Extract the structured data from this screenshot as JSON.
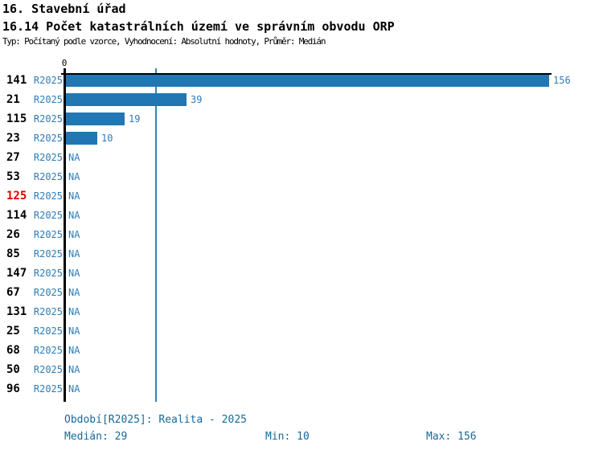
{
  "header": {
    "section_title": "16. Stavební úřad",
    "indicator_title": "16.14 Počet katastrálních území ve správním obvodu ORP",
    "meta": "Typ: Počítaný podle vzorce, Vyhodnocení: Absolutní hodnoty, Průměr: Medián"
  },
  "chart_data": {
    "type": "bar",
    "orientation": "horizontal",
    "title": "16.14 Počet katastrálních území ve správním obvodu ORP",
    "axis_zero_label": "0",
    "period_label": "R2025",
    "na_label": "NA",
    "categories": [
      "141",
      "21",
      "115",
      "23",
      "27",
      "53",
      "125",
      "114",
      "26",
      "85",
      "147",
      "67",
      "131",
      "25",
      "68",
      "50",
      "96"
    ],
    "values": [
      156,
      39,
      19,
      10,
      null,
      null,
      null,
      null,
      null,
      null,
      null,
      null,
      null,
      null,
      null,
      null,
      null
    ],
    "highlighted_category": "125",
    "median": 29,
    "min": 10,
    "max": 156,
    "xlim": [
      0,
      156
    ],
    "grid": "median-line-only",
    "legend": "none"
  },
  "colors": {
    "bar": "#2077b4",
    "median_line": "#3585bb",
    "blue_label": "#2e7cb8",
    "highlight_red": "#e00000",
    "footer_text": "#15699b",
    "axis": "#000000",
    "title_text": "#000000"
  },
  "footer": {
    "period_line": "Období[R2025]: Realita - 2025",
    "median_label": "Medián: 29",
    "min_label": "Min: 10",
    "max_label": "Max: 156"
  }
}
